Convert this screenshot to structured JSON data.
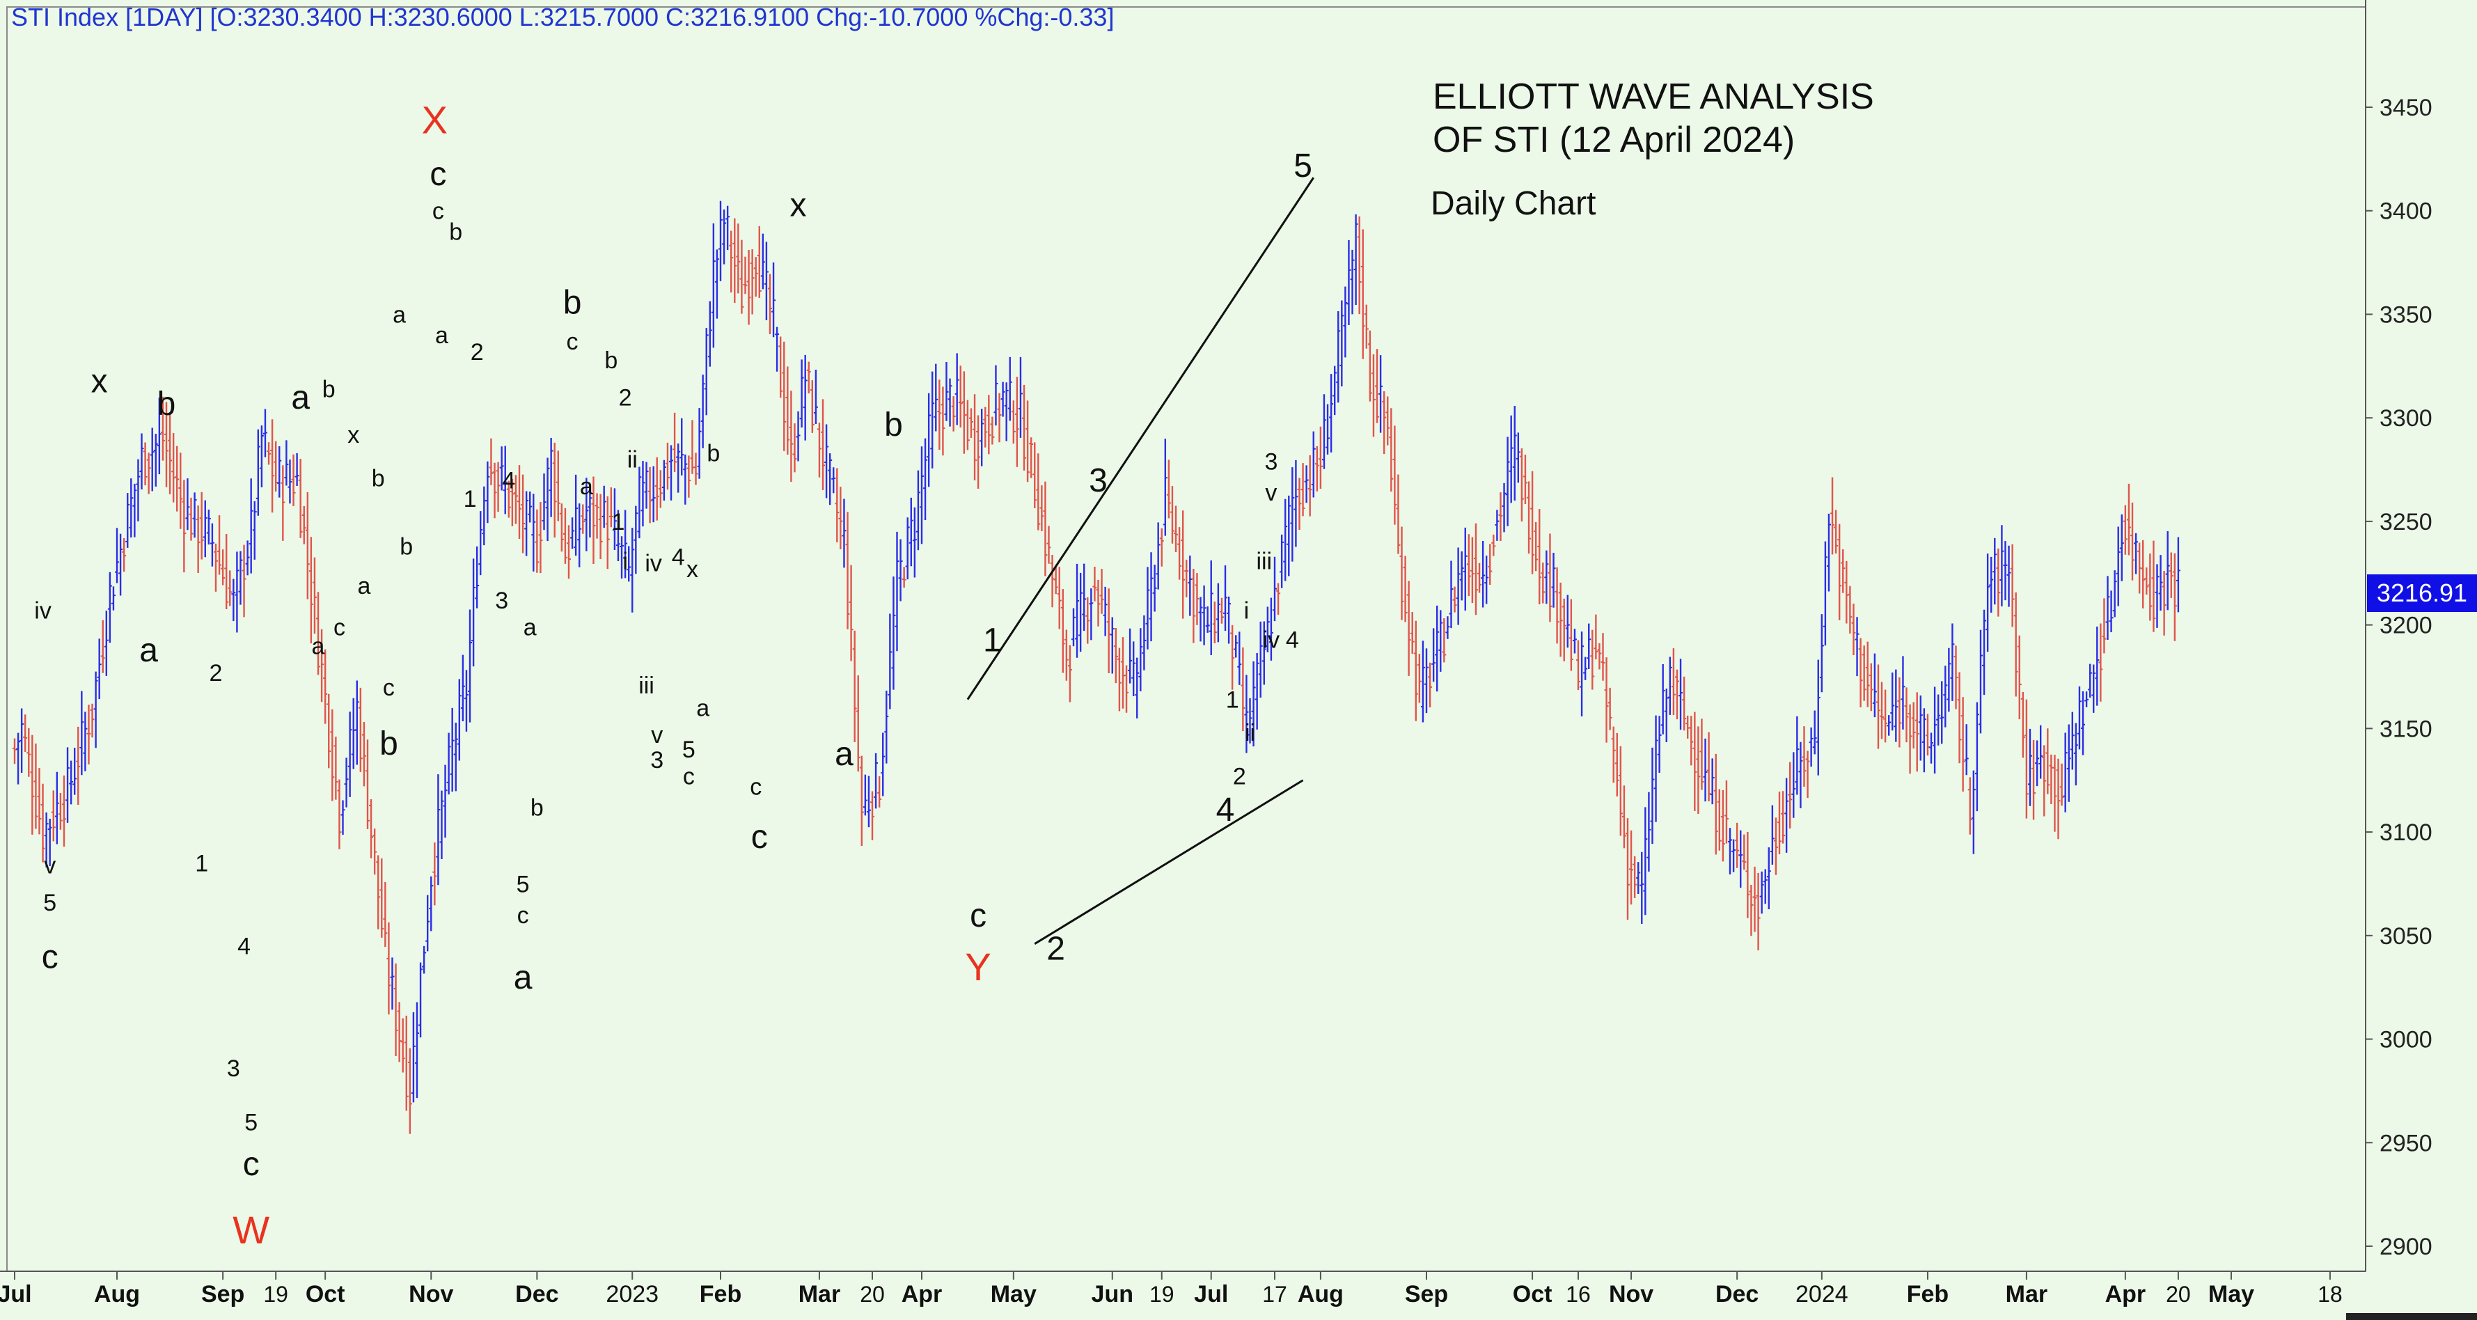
{
  "header": {
    "text": "STI Index [1DAY] [O:3230.3400 H:3230.6000 L:3215.7000 C:3216.9100 Chg:-10.7000 %Chg:-0.33]"
  },
  "annotation": {
    "title_line1": "ELLIOTT WAVE ANALYSIS",
    "title_line2": "OF STI (12 April 2024)",
    "subtitle": "Daily Chart"
  },
  "price_tag": "3216.91",
  "colors": {
    "background": "#ecf8e8",
    "up_bar": "#2a2ee6",
    "down_bar": "#e0554a",
    "major_label": "#e8331f",
    "header_text": "#1f35d0",
    "price_tag_bg": "#1010e6"
  },
  "chart_data": {
    "type": "ohlc-bar",
    "title": "ELLIOTT WAVE ANALYSIS OF STI (12 April 2024)",
    "subtitle": "Daily Chart",
    "ylim": [
      2880,
      3490
    ],
    "y_ticks": [
      2900,
      2950,
      3000,
      3050,
      3100,
      3150,
      3200,
      3250,
      3300,
      3350,
      3400,
      3450
    ],
    "x_ticks": [
      "Jul",
      "Aug",
      "Sep",
      "19",
      "Oct",
      "Nov",
      "Dec",
      "2023",
      "Feb",
      "Mar",
      "20",
      "Apr",
      "May",
      "Jun",
      "19",
      "Jul",
      "17",
      "Aug",
      "Sep",
      "Oct",
      "16",
      "Nov",
      "Dec",
      "2024",
      "Feb",
      "Mar",
      "Apr",
      "20",
      "May",
      "18"
    ],
    "x_tick_index": [
      0,
      29,
      59,
      74,
      88,
      118,
      148,
      175,
      200,
      228,
      243,
      257,
      283,
      311,
      325,
      339,
      357,
      370,
      400,
      430,
      443,
      458,
      488,
      512,
      542,
      570,
      598,
      613,
      628,
      656
    ],
    "last_close": 3216.91,
    "price_path": [
      [
        0,
        3140
      ],
      [
        2,
        3150
      ],
      [
        8,
        3100
      ],
      [
        15,
        3120
      ],
      [
        22,
        3160
      ],
      [
        27,
        3215
      ],
      [
        36,
        3280
      ],
      [
        42,
        3290
      ],
      [
        48,
        3255
      ],
      [
        56,
        3240
      ],
      [
        62,
        3210
      ],
      [
        67,
        3245
      ],
      [
        70,
        3290
      ],
      [
        74,
        3270
      ],
      [
        80,
        3270
      ],
      [
        85,
        3205
      ],
      [
        92,
        3110
      ],
      [
        97,
        3160
      ],
      [
        105,
        3040
      ],
      [
        112,
        2975
      ],
      [
        115,
        3030
      ],
      [
        118,
        3080
      ],
      [
        124,
        3140
      ],
      [
        128,
        3170
      ],
      [
        131,
        3230
      ],
      [
        134,
        3280
      ],
      [
        141,
        3260
      ],
      [
        148,
        3240
      ],
      [
        152,
        3280
      ],
      [
        156,
        3235
      ],
      [
        162,
        3255
      ],
      [
        168,
        3250
      ],
      [
        174,
        3225
      ],
      [
        177,
        3260
      ],
      [
        183,
        3270
      ],
      [
        186,
        3280
      ],
      [
        193,
        3275
      ],
      [
        198,
        3370
      ],
      [
        201,
        3395
      ],
      [
        206,
        3360
      ],
      [
        210,
        3380
      ],
      [
        215,
        3345
      ],
      [
        220,
        3280
      ],
      [
        224,
        3320
      ],
      [
        230,
        3275
      ],
      [
        235,
        3240
      ],
      [
        240,
        3110
      ],
      [
        245,
        3125
      ],
      [
        250,
        3220
      ],
      [
        255,
        3250
      ],
      [
        260,
        3300
      ],
      [
        266,
        3310
      ],
      [
        272,
        3290
      ],
      [
        280,
        3310
      ],
      [
        285,
        3300
      ],
      [
        290,
        3260
      ],
      [
        298,
        3185
      ],
      [
        302,
        3205
      ],
      [
        306,
        3220
      ],
      [
        312,
        3185
      ],
      [
        317,
        3170
      ],
      [
        321,
        3205
      ],
      [
        326,
        3260
      ],
      [
        332,
        3225
      ],
      [
        337,
        3200
      ],
      [
        343,
        3210
      ],
      [
        349,
        3150
      ],
      [
        355,
        3195
      ],
      [
        362,
        3260
      ],
      [
        370,
        3280
      ],
      [
        376,
        3340
      ],
      [
        380,
        3385
      ],
      [
        384,
        3320
      ],
      [
        389,
        3295
      ],
      [
        392,
        3235
      ],
      [
        398,
        3165
      ],
      [
        404,
        3190
      ],
      [
        410,
        3230
      ],
      [
        416,
        3225
      ],
      [
        420,
        3250
      ],
      [
        425,
        3285
      ],
      [
        432,
        3230
      ],
      [
        438,
        3210
      ],
      [
        443,
        3175
      ],
      [
        448,
        3190
      ],
      [
        452,
        3150
      ],
      [
        457,
        3085
      ],
      [
        461,
        3070
      ],
      [
        465,
        3140
      ],
      [
        469,
        3175
      ],
      [
        474,
        3150
      ],
      [
        480,
        3120
      ],
      [
        486,
        3095
      ],
      [
        490,
        3080
      ],
      [
        494,
        3065
      ],
      [
        499,
        3100
      ],
      [
        504,
        3125
      ],
      [
        510,
        3145
      ],
      [
        514,
        3255
      ],
      [
        519,
        3210
      ],
      [
        524,
        3175
      ],
      [
        530,
        3150
      ],
      [
        535,
        3165
      ],
      [
        542,
        3140
      ],
      [
        549,
        3180
      ],
      [
        554,
        3110
      ],
      [
        559,
        3220
      ],
      [
        565,
        3230
      ],
      [
        570,
        3125
      ],
      [
        575,
        3135
      ],
      [
        580,
        3120
      ],
      [
        584,
        3150
      ],
      [
        588,
        3170
      ],
      [
        594,
        3210
      ],
      [
        597,
        3250
      ],
      [
        601,
        3235
      ],
      [
        606,
        3215
      ],
      [
        611,
        3225
      ],
      [
        613,
        3217
      ]
    ],
    "wave_labels": [
      {
        "text": "iv",
        "i": 8,
        "price": 3207,
        "style": "minor"
      },
      {
        "text": "v",
        "i": 10,
        "price": 3084,
        "style": "minor"
      },
      {
        "text": "5",
        "i": 10,
        "price": 3066,
        "style": "minor"
      },
      {
        "text": "c",
        "i": 10,
        "price": 3040,
        "style": "mid"
      },
      {
        "text": "x",
        "i": 24,
        "price": 3318,
        "style": "mid"
      },
      {
        "text": "b",
        "i": 43,
        "price": 3307,
        "style": "mid"
      },
      {
        "text": "a",
        "i": 38,
        "price": 3188,
        "style": "mid"
      },
      {
        "text": "2",
        "i": 57,
        "price": 3177,
        "style": "minor"
      },
      {
        "text": "1",
        "i": 53,
        "price": 3085,
        "style": "minor"
      },
      {
        "text": "4",
        "i": 65,
        "price": 3045,
        "style": "minor"
      },
      {
        "text": "3",
        "i": 62,
        "price": 2986,
        "style": "minor"
      },
      {
        "text": "5",
        "i": 67,
        "price": 2960,
        "style": "minor"
      },
      {
        "text": "c",
        "i": 67,
        "price": 2940,
        "style": "mid"
      },
      {
        "text": "W",
        "i": 67,
        "price": 2908,
        "style": "major"
      },
      {
        "text": "a",
        "i": 81,
        "price": 3310,
        "style": "mid"
      },
      {
        "text": "a",
        "i": 86,
        "price": 3190,
        "style": "minor"
      },
      {
        "text": "b",
        "i": 89,
        "price": 3314,
        "style": "minor"
      },
      {
        "text": "c",
        "i": 92,
        "price": 3199,
        "style": "minor"
      },
      {
        "text": "x",
        "i": 96,
        "price": 3292,
        "style": "minor"
      },
      {
        "text": "a",
        "i": 99,
        "price": 3219,
        "style": "minor"
      },
      {
        "text": "b",
        "i": 103,
        "price": 3271,
        "style": "minor"
      },
      {
        "text": "c",
        "i": 106,
        "price": 3170,
        "style": "minor"
      },
      {
        "text": "b",
        "i": 106,
        "price": 3143,
        "style": "mid"
      },
      {
        "text": "b",
        "i": 111,
        "price": 3238,
        "style": "minor"
      },
      {
        "text": "a",
        "i": 109,
        "price": 3350,
        "style": "minor"
      },
      {
        "text": "X",
        "i": 119,
        "price": 3444,
        "style": "major"
      },
      {
        "text": "c",
        "i": 120,
        "price": 3418,
        "style": "mid"
      },
      {
        "text": "c",
        "i": 120,
        "price": 3400,
        "style": "minor"
      },
      {
        "text": "b",
        "i": 125,
        "price": 3390,
        "style": "minor"
      },
      {
        "text": "a",
        "i": 121,
        "price": 3340,
        "style": "minor"
      },
      {
        "text": "2",
        "i": 131,
        "price": 3332,
        "style": "minor"
      },
      {
        "text": "1",
        "i": 129,
        "price": 3261,
        "style": "minor"
      },
      {
        "text": "4",
        "i": 140,
        "price": 3270,
        "style": "minor"
      },
      {
        "text": "3",
        "i": 138,
        "price": 3212,
        "style": "minor"
      },
      {
        "text": "a",
        "i": 146,
        "price": 3199,
        "style": "minor"
      },
      {
        "text": "b",
        "i": 148,
        "price": 3112,
        "style": "minor"
      },
      {
        "text": "5",
        "i": 144,
        "price": 3075,
        "style": "minor"
      },
      {
        "text": "c",
        "i": 144,
        "price": 3060,
        "style": "minor"
      },
      {
        "text": "a",
        "i": 144,
        "price": 3030,
        "style": "mid"
      },
      {
        "text": "b",
        "i": 158,
        "price": 3356,
        "style": "mid"
      },
      {
        "text": "c",
        "i": 158,
        "price": 3337,
        "style": "minor"
      },
      {
        "text": "a",
        "i": 162,
        "price": 3267,
        "style": "minor"
      },
      {
        "text": "b",
        "i": 169,
        "price": 3328,
        "style": "minor"
      },
      {
        "text": "2",
        "i": 173,
        "price": 3310,
        "style": "minor"
      },
      {
        "text": "ii",
        "i": 175,
        "price": 3280,
        "style": "minor"
      },
      {
        "text": "1",
        "i": 171,
        "price": 3250,
        "style": "minor"
      },
      {
        "text": "i",
        "i": 173,
        "price": 3231,
        "style": "minor"
      },
      {
        "text": "iv",
        "i": 181,
        "price": 3230,
        "style": "minor"
      },
      {
        "text": "4",
        "i": 188,
        "price": 3233,
        "style": "minor"
      },
      {
        "text": "x",
        "i": 192,
        "price": 3227,
        "style": "minor"
      },
      {
        "text": "iii",
        "i": 179,
        "price": 3171,
        "style": "minor"
      },
      {
        "text": "v",
        "i": 182,
        "price": 3147,
        "style": "minor"
      },
      {
        "text": "3",
        "i": 182,
        "price": 3135,
        "style": "minor"
      },
      {
        "text": "a",
        "i": 195,
        "price": 3160,
        "style": "minor"
      },
      {
        "text": "5",
        "i": 191,
        "price": 3140,
        "style": "minor"
      },
      {
        "text": "c",
        "i": 191,
        "price": 3127,
        "style": "minor"
      },
      {
        "text": "b",
        "i": 198,
        "price": 3283,
        "style": "minor"
      },
      {
        "text": "c",
        "i": 210,
        "price": 3122,
        "style": "minor"
      },
      {
        "text": "c",
        "i": 211,
        "price": 3098,
        "style": "mid"
      },
      {
        "text": "x",
        "i": 222,
        "price": 3403,
        "style": "mid"
      },
      {
        "text": "b",
        "i": 249,
        "price": 3297,
        "style": "mid"
      },
      {
        "text": "a",
        "i": 235,
        "price": 3138,
        "style": "mid"
      },
      {
        "text": "1",
        "i": 277,
        "price": 3193,
        "style": "mid"
      },
      {
        "text": "3",
        "i": 307,
        "price": 3270,
        "style": "mid"
      },
      {
        "text": "c",
        "i": 273,
        "price": 3060,
        "style": "mid"
      },
      {
        "text": "Y",
        "i": 273,
        "price": 3035,
        "style": "major"
      },
      {
        "text": "2",
        "i": 295,
        "price": 3044,
        "style": "mid"
      },
      {
        "text": "4",
        "i": 343,
        "price": 3111,
        "style": "mid"
      },
      {
        "text": "5",
        "i": 365,
        "price": 3422,
        "style": "mid"
      },
      {
        "text": "3",
        "i": 356,
        "price": 3279,
        "style": "minor"
      },
      {
        "text": "v",
        "i": 356,
        "price": 3264,
        "style": "minor"
      },
      {
        "text": "iii",
        "i": 354,
        "price": 3231,
        "style": "minor"
      },
      {
        "text": "i",
        "i": 349,
        "price": 3207,
        "style": "minor"
      },
      {
        "text": "iv",
        "i": 356,
        "price": 3193,
        "style": "minor"
      },
      {
        "text": "4",
        "i": 362,
        "price": 3193,
        "style": "minor"
      },
      {
        "text": "1",
        "i": 345,
        "price": 3164,
        "style": "minor"
      },
      {
        "text": "ii",
        "i": 350,
        "price": 3148,
        "style": "minor"
      },
      {
        "text": "2",
        "i": 347,
        "price": 3127,
        "style": "minor"
      }
    ],
    "trendlines": [
      {
        "from": {
          "i": 270,
          "price": 3164
        },
        "to": {
          "i": 368,
          "price": 3416
        }
      },
      {
        "from": {
          "i": 289,
          "price": 3046
        },
        "to": {
          "i": 365,
          "price": 3125
        }
      }
    ]
  }
}
